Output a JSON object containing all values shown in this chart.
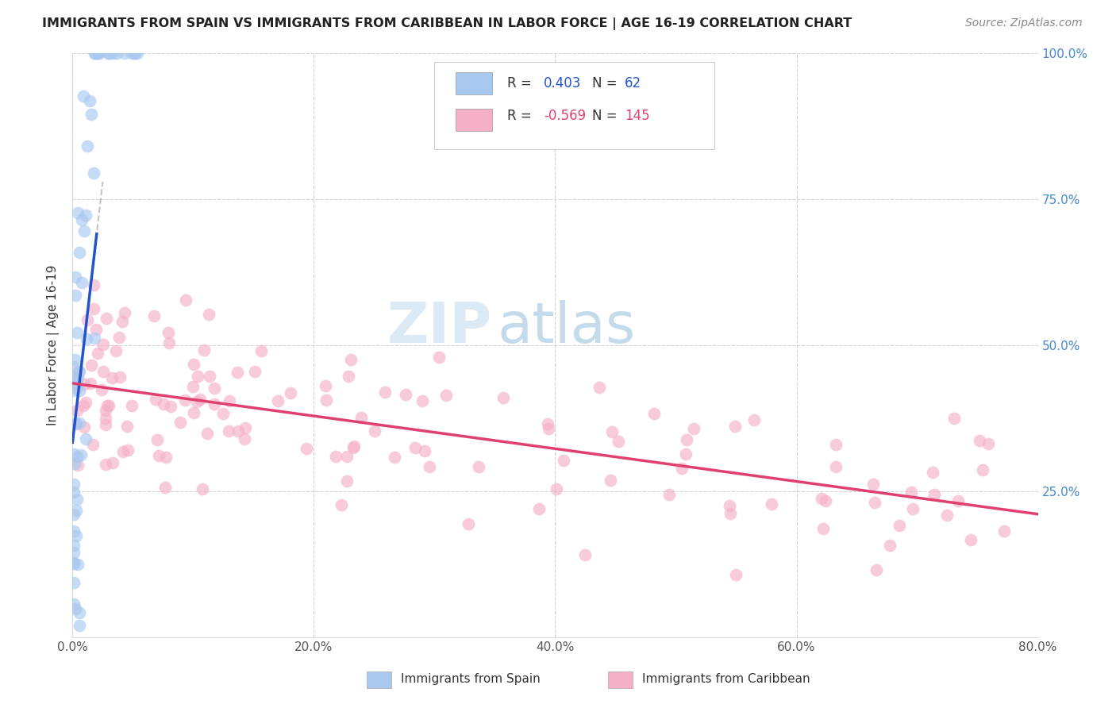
{
  "title": "IMMIGRANTS FROM SPAIN VS IMMIGRANTS FROM CARIBBEAN IN LABOR FORCE | AGE 16-19 CORRELATION CHART",
  "source": "Source: ZipAtlas.com",
  "ylabel": "In Labor Force | Age 16-19",
  "spain_R": 0.403,
  "spain_N": 62,
  "caribbean_R": -0.569,
  "caribbean_N": 145,
  "spain_color": "#a8c8f0",
  "caribbean_color": "#f5b0c8",
  "spain_line_color": "#2255cc",
  "caribbean_line_color": "#e04070",
  "watermark_zip": "ZIP",
  "watermark_atlas": "atlas",
  "background_color": "#ffffff",
  "grid_color": "#c8c8c8",
  "xlim": [
    0.0,
    0.8
  ],
  "ylim": [
    0.0,
    1.0
  ],
  "legend_r1_color": "#2255cc",
  "legend_r2_color": "#e04070",
  "legend_n_color": "#2255cc",
  "right_tick_color": "#4488cc",
  "title_fontsize": 11.5,
  "source_fontsize": 10,
  "tick_fontsize": 11,
  "ylabel_fontsize": 11
}
